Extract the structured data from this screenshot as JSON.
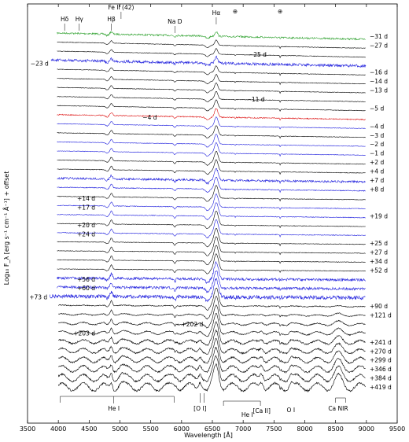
{
  "chart_data": {
    "type": "line",
    "xlabel": "Wavelength [Å]",
    "ylabel": "Log₁₀ F_λ [erg s⁻¹ cm⁻¹ Å⁻¹] + offset",
    "xlim": [
      3500,
      9500
    ],
    "x_ticks": [
      "3500",
      "4000",
      "4500",
      "5000",
      "5500",
      "6000",
      "6500",
      "7000",
      "7500",
      "8000",
      "8500",
      "9000",
      "9500"
    ],
    "line_ids": [
      {
        "label": "Hδ",
        "wavelength": 4102
      },
      {
        "label": "Hγ",
        "wavelength": 4340
      },
      {
        "label": "Hβ",
        "wavelength": 4861
      },
      {
        "label": "Fe II (42)",
        "wavelength": 5018
      },
      {
        "label": "Na D",
        "wavelength": 5892
      },
      {
        "label": "Hα",
        "wavelength": 6563
      },
      {
        "label": "⊕",
        "wavelength": 6870
      },
      {
        "label": "⊕",
        "wavelength": 7600
      },
      {
        "label": "He I",
        "wavelength": 4900
      },
      {
        "label": "[O I]",
        "wavelength": 6300
      },
      {
        "label": "He I",
        "wavelength": 7065
      },
      {
        "label": "[Ca II]",
        "wavelength": 7300
      },
      {
        "label": "O I",
        "wavelength": 7774
      },
      {
        "label": "Ca NIR",
        "wavelength": 8542
      }
    ],
    "series": [
      {
        "name": "−31 d",
        "color": "#2ca02c",
        "noise": 1.0,
        "label_side": "right"
      },
      {
        "name": "−27 d",
        "color": "#000000",
        "noise": 0.3,
        "label_side": "right"
      },
      {
        "name": "−25 d",
        "color": "#000000",
        "noise": 0.3,
        "label_side": "inside"
      },
      {
        "name": "−23 d",
        "color": "#1f1fdd",
        "noise": 1.6,
        "label_side": "left"
      },
      {
        "name": "−16 d",
        "color": "#000000",
        "noise": 0.3,
        "label_side": "right"
      },
      {
        "name": "−14 d",
        "color": "#000000",
        "noise": 0.3,
        "label_side": "right"
      },
      {
        "name": "−13 d",
        "color": "#000000",
        "noise": 0.3,
        "label_side": "right"
      },
      {
        "name": "−11 d",
        "color": "#000000",
        "noise": 0.3,
        "label_side": "inside"
      },
      {
        "name": "−5 d",
        "color": "#000000",
        "noise": 0.3,
        "label_side": "right"
      },
      {
        "name": "−4 d",
        "color": "#dd1111",
        "noise": 0.6,
        "label_side": "inside"
      },
      {
        "name": "−4 d",
        "color": "#1f1fdd",
        "noise": 0.3,
        "label_side": "right"
      },
      {
        "name": "−3 d",
        "color": "#000000",
        "noise": 0.3,
        "label_side": "right"
      },
      {
        "name": "−2 d",
        "color": "#1f1fdd",
        "noise": 0.3,
        "label_side": "right"
      },
      {
        "name": "−1 d",
        "color": "#1f1fdd",
        "noise": 0.3,
        "label_side": "right"
      },
      {
        "name": "+2 d",
        "color": "#000000",
        "noise": 0.3,
        "label_side": "right"
      },
      {
        "name": "+4 d",
        "color": "#000000",
        "noise": 0.3,
        "label_side": "right"
      },
      {
        "name": "+7 d",
        "color": "#1f1fdd",
        "noise": 1.2,
        "label_side": "right"
      },
      {
        "name": "+8 d",
        "color": "#1f1fdd",
        "noise": 0.5,
        "label_side": "right"
      },
      {
        "name": "+14 d",
        "color": "#000000",
        "noise": 0.3,
        "label_side": "inside"
      },
      {
        "name": "+17 d",
        "color": "#1f1fdd",
        "noise": 0.4,
        "label_side": "inside"
      },
      {
        "name": "+19 d",
        "color": "#1f1fdd",
        "noise": 0.4,
        "label_side": "right"
      },
      {
        "name": "+20 d",
        "color": "#000000",
        "noise": 0.3,
        "label_side": "inside"
      },
      {
        "name": "+24 d",
        "color": "#1f1fdd",
        "noise": 0.4,
        "label_side": "inside"
      },
      {
        "name": "+25 d",
        "color": "#000000",
        "noise": 0.3,
        "label_side": "right"
      },
      {
        "name": "+27 d",
        "color": "#000000",
        "noise": 0.3,
        "label_side": "right"
      },
      {
        "name": "+34 d",
        "color": "#000000",
        "noise": 0.3,
        "label_side": "right"
      },
      {
        "name": "+52 d",
        "color": "#000000",
        "noise": 0.3,
        "label_side": "right"
      },
      {
        "name": "+56 d",
        "color": "#1f1fdd",
        "noise": 1.5,
        "label_side": "inside"
      },
      {
        "name": "+60 d",
        "color": "#1f1fdd",
        "noise": 1.5,
        "label_side": "inside"
      },
      {
        "name": "+73 d",
        "color": "#1f1fdd",
        "noise": 2.2,
        "label_side": "left"
      },
      {
        "name": "+90 d",
        "color": "#000000",
        "noise": 0.5,
        "label_side": "right"
      },
      {
        "name": "+121 d",
        "color": "#000000",
        "noise": 0.5,
        "label_side": "right"
      },
      {
        "name": "+202 d",
        "color": "#000000",
        "noise": 0.6,
        "label_side": "inside"
      },
      {
        "name": "+203 d",
        "color": "#000000",
        "noise": 0.6,
        "label_side": "inside"
      },
      {
        "name": "+241 d",
        "color": "#000000",
        "noise": 0.9,
        "label_side": "right"
      },
      {
        "name": "+270 d",
        "color": "#000000",
        "noise": 0.9,
        "label_side": "right"
      },
      {
        "name": "+299 d",
        "color": "#000000",
        "noise": 0.9,
        "label_side": "right"
      },
      {
        "name": "+346 d",
        "color": "#000000",
        "noise": 0.9,
        "label_side": "right"
      },
      {
        "name": "+384 d",
        "color": "#000000",
        "noise": 1.0,
        "label_side": "right"
      },
      {
        "name": "+419 d",
        "color": "#000000",
        "noise": 1.1,
        "label_side": "right"
      }
    ]
  }
}
